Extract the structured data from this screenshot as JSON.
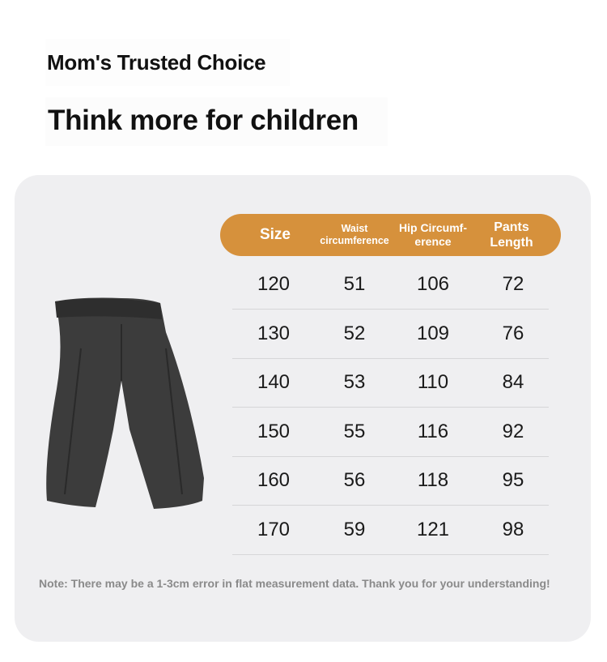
{
  "header": {
    "tagline": "Mom's Trusted Choice",
    "title": "Think more for children"
  },
  "table": {
    "columns": [
      "Size",
      "Waist circumference",
      "Hip Circumf-erence",
      "Pants Length"
    ],
    "rows": [
      [
        "120",
        "51",
        "106",
        "72"
      ],
      [
        "130",
        "52",
        "109",
        "76"
      ],
      [
        "140",
        "53",
        "110",
        "84"
      ],
      [
        "150",
        "55",
        "116",
        "92"
      ],
      [
        "160",
        "56",
        "118",
        "95"
      ],
      [
        "170",
        "59",
        "121",
        "98"
      ]
    ]
  },
  "note": "Note: There may be a 1-3cm error in flat measurement data. Thank you for your understanding!",
  "colors": {
    "accent": "#d6913c",
    "card": "#efeff1"
  }
}
